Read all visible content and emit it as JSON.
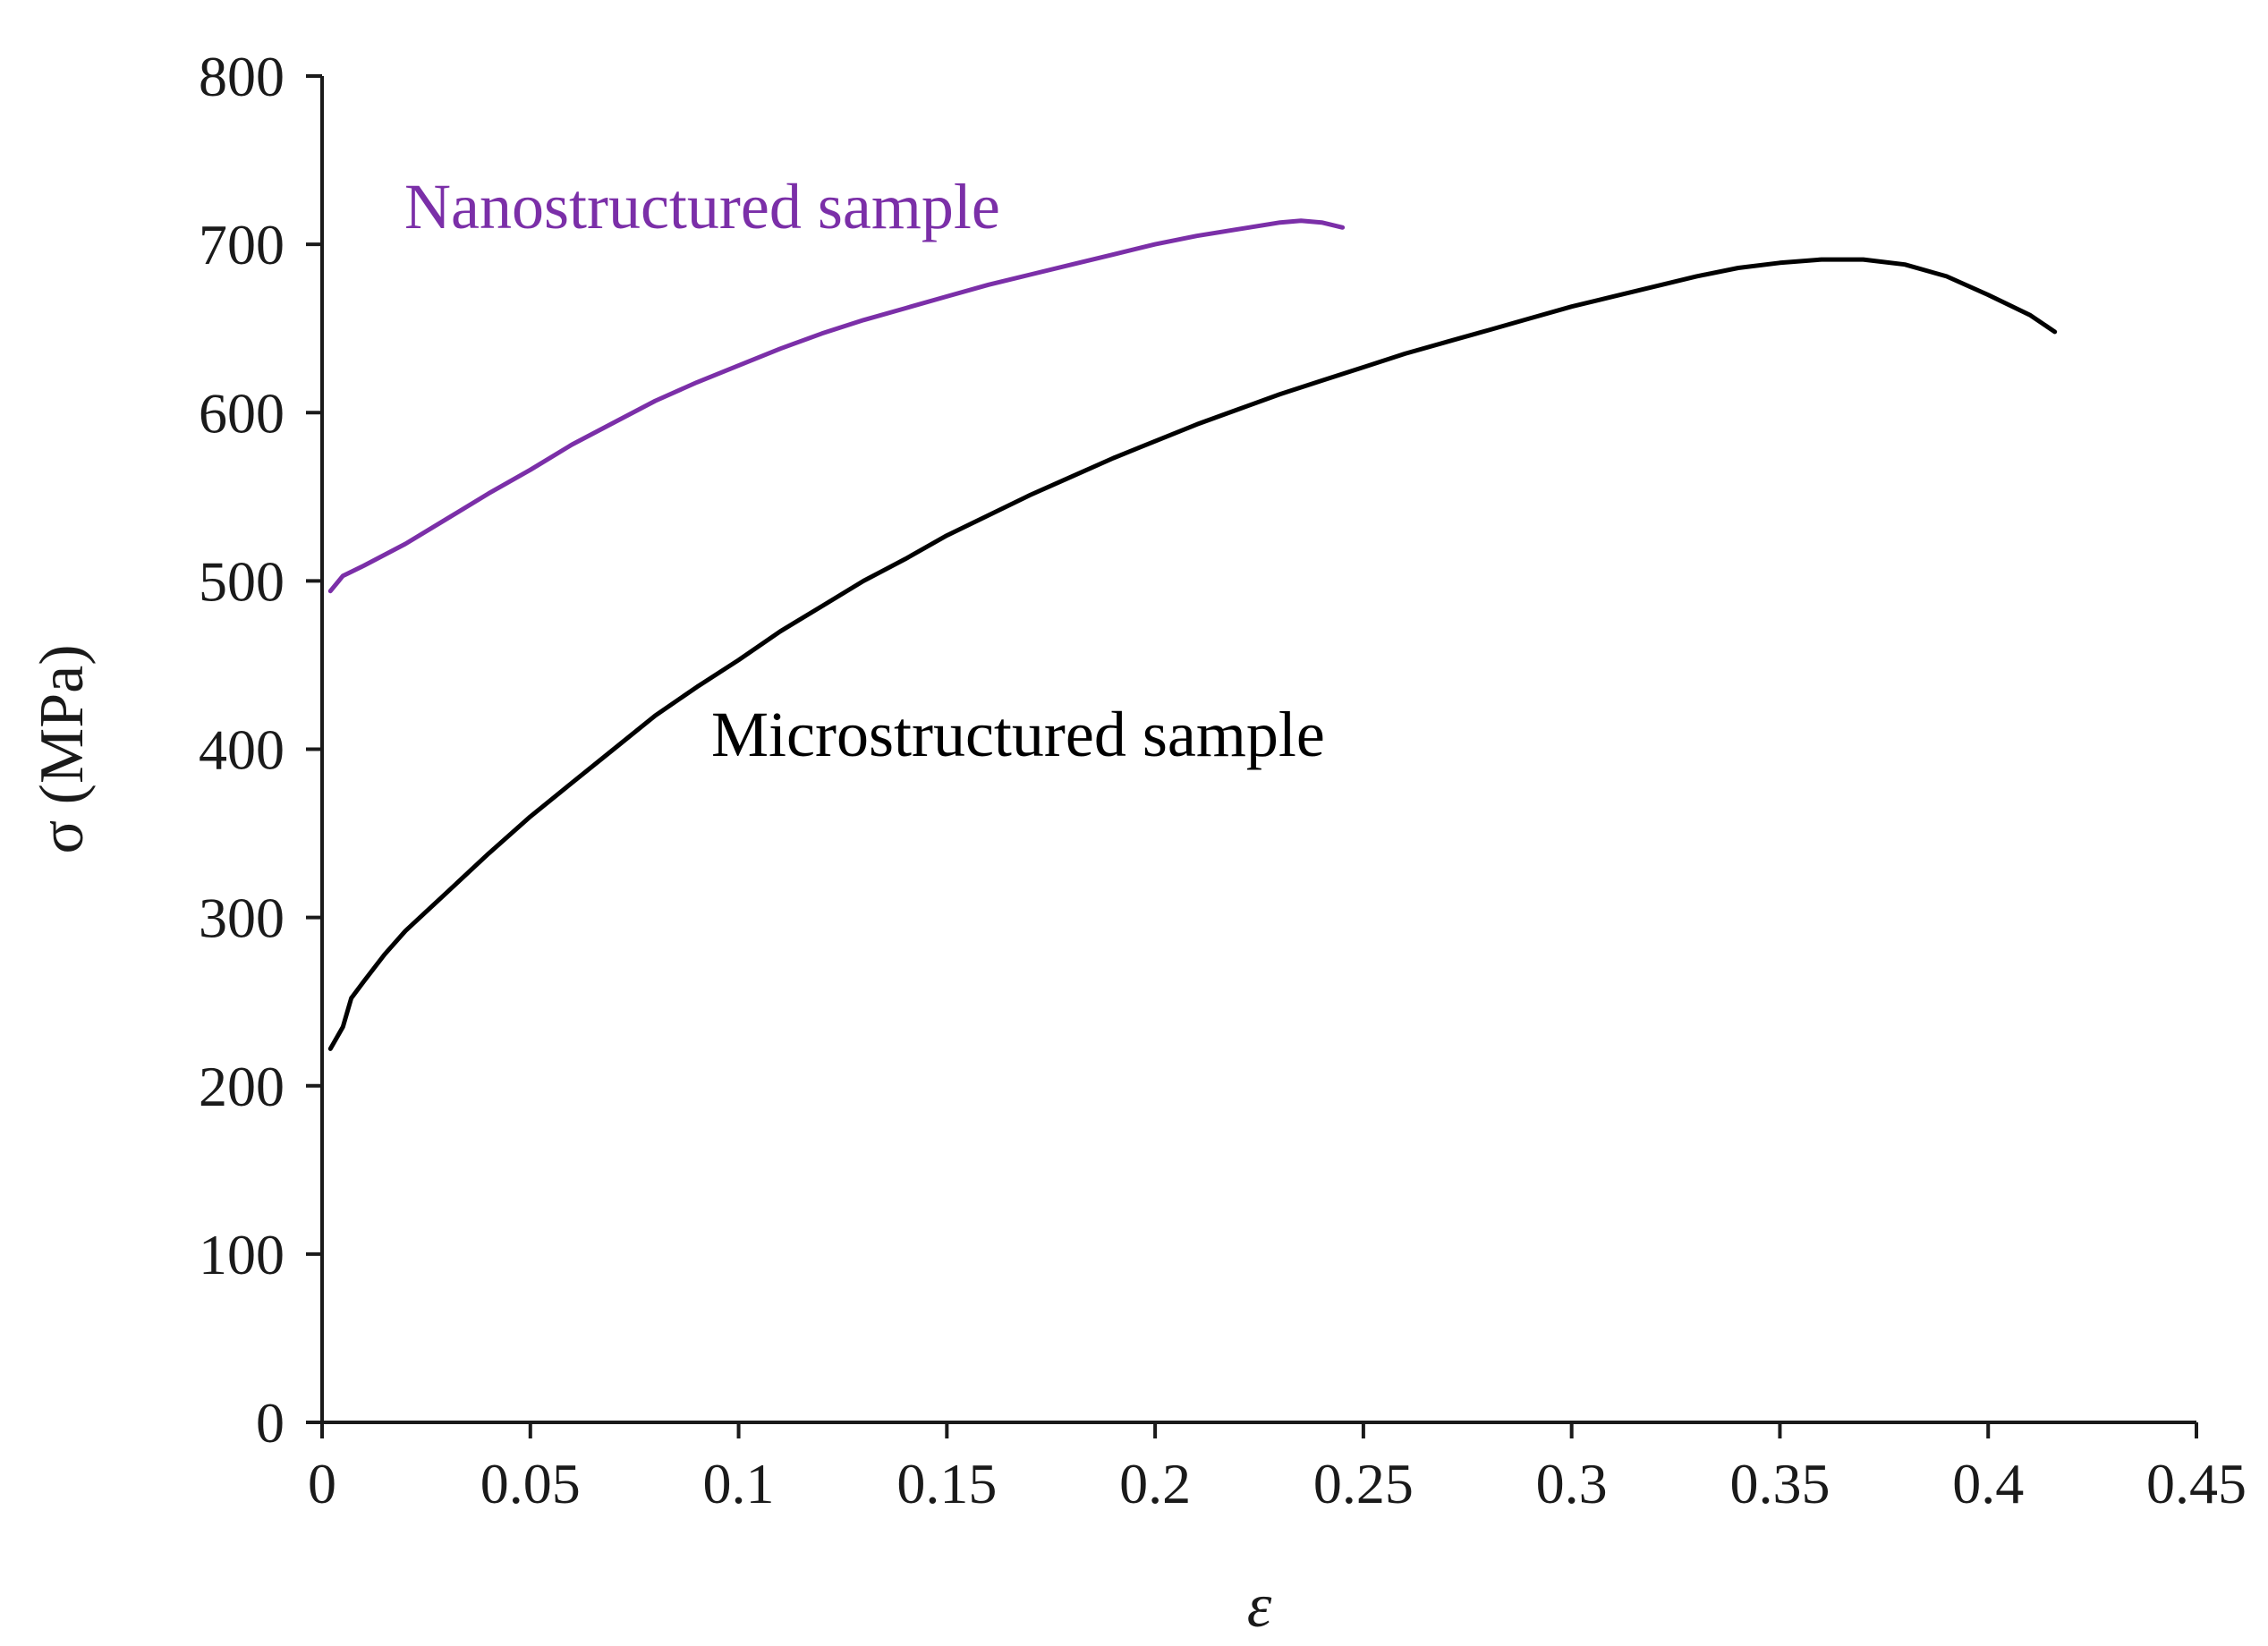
{
  "chart_data": {
    "type": "line",
    "title": "",
    "xlabel": "ε",
    "ylabel": "σ (MPa)",
    "xlim": [
      0,
      0.45
    ],
    "ylim": [
      0,
      800
    ],
    "xticks": [
      "0",
      "0.05",
      "0.1",
      "0.15",
      "0.2",
      "0.25",
      "0.3",
      "0.35",
      "0.4",
      "0.45"
    ],
    "yticks": [
      "0",
      "100",
      "200",
      "300",
      "400",
      "500",
      "600",
      "700",
      "800"
    ],
    "grid": false,
    "series": [
      {
        "name": "Nanostructured sample",
        "color": "#7b2fa8",
        "x": [
          0.002,
          0.005,
          0.01,
          0.02,
          0.03,
          0.04,
          0.05,
          0.06,
          0.07,
          0.08,
          0.09,
          0.1,
          0.11,
          0.12,
          0.13,
          0.14,
          0.15,
          0.16,
          0.17,
          0.18,
          0.19,
          0.2,
          0.21,
          0.22,
          0.23,
          0.235,
          0.24,
          0.245
        ],
        "y": [
          494,
          503,
          509,
          522,
          537,
          552,
          566,
          581,
          594,
          607,
          618,
          628,
          638,
          647,
          655,
          662,
          669,
          676,
          682,
          688,
          694,
          700,
          705,
          709,
          713,
          714,
          713,
          710
        ]
      },
      {
        "name": "Microstructured sample",
        "color": "#000000",
        "x": [
          0.002,
          0.005,
          0.007,
          0.01,
          0.015,
          0.02,
          0.03,
          0.04,
          0.05,
          0.06,
          0.07,
          0.08,
          0.09,
          0.1,
          0.11,
          0.12,
          0.13,
          0.14,
          0.15,
          0.16,
          0.17,
          0.18,
          0.19,
          0.2,
          0.21,
          0.22,
          0.23,
          0.24,
          0.25,
          0.26,
          0.27,
          0.28,
          0.29,
          0.3,
          0.31,
          0.32,
          0.33,
          0.34,
          0.35,
          0.36,
          0.37,
          0.38,
          0.39,
          0.4,
          0.41,
          0.416
        ],
        "y": [
          222,
          235,
          252,
          262,
          278,
          292,
          315,
          338,
          360,
          380,
          400,
          420,
          437,
          453,
          470,
          485,
          500,
          513,
          527,
          539,
          551,
          562,
          573,
          583,
          593,
          602,
          611,
          619,
          627,
          635,
          642,
          649,
          656,
          663,
          669,
          675,
          681,
          686,
          689,
          691,
          691,
          688,
          681,
          670,
          658,
          648
        ]
      }
    ]
  }
}
